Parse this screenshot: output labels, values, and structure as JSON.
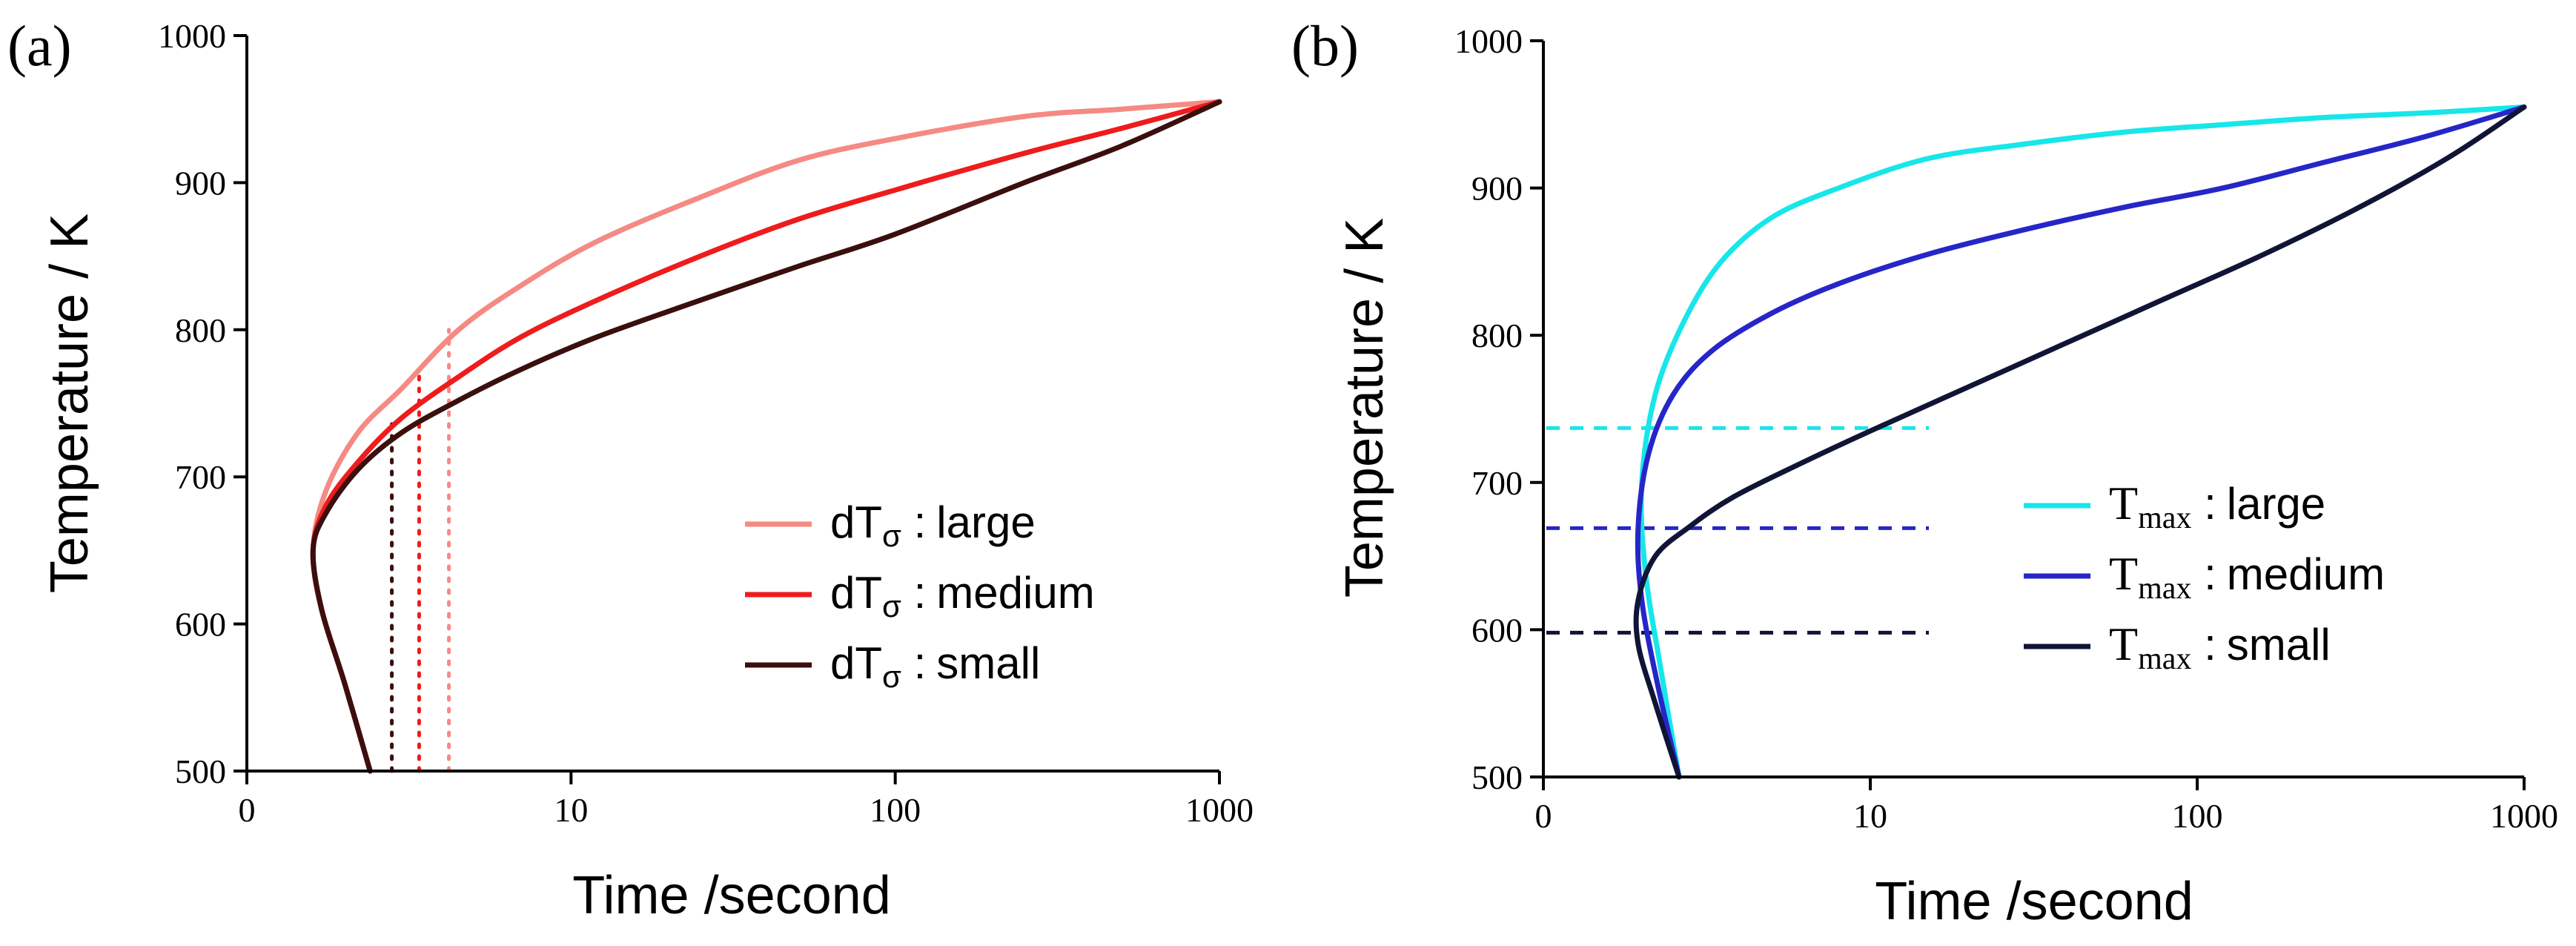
{
  "chart_data": [
    {
      "panel": "(a)",
      "type": "line",
      "xlabel": "Time /second",
      "ylabel": "Temperature / K",
      "x_scale": "log",
      "x_ticks": [
        0,
        10,
        100,
        1000
      ],
      "y_ticks": [
        500,
        600,
        700,
        800,
        900,
        1000
      ],
      "ylim": [
        500,
        1000
      ],
      "legend_position": "bottom-right",
      "legend": [
        {
          "symbol": "dT",
          "sub": "σ",
          "sep": " :",
          "label": "large"
        },
        {
          "symbol": "dT",
          "sub": "σ",
          "sep": " :",
          "label": "medium"
        },
        {
          "symbol": "dT",
          "sub": "σ",
          "sep": " :",
          "label": "small"
        }
      ],
      "colors": [
        "#f58a84",
        "#ee1c1c",
        "#3a0f0e"
      ],
      "series": [
        {
          "name": "dTσ : large",
          "x": [
            2.4,
            2.0,
            1.7,
            1.6,
            1.75,
            2.2,
            3.0,
            4.5,
            7,
            12,
            25,
            50,
            100,
            250,
            500,
            1000
          ],
          "y": [
            500,
            560,
            610,
            650,
            690,
            730,
            760,
            800,
            830,
            860,
            890,
            915,
            930,
            945,
            950,
            955
          ]
        },
        {
          "name": "dTσ : medium",
          "x": [
            2.4,
            2.0,
            1.7,
            1.6,
            1.75,
            2.2,
            3.0,
            4.5,
            7,
            12,
            25,
            50,
            100,
            250,
            500,
            1000
          ],
          "y": [
            500,
            560,
            610,
            650,
            680,
            710,
            740,
            768,
            795,
            820,
            850,
            875,
            895,
            920,
            937,
            955
          ]
        },
        {
          "name": "dTσ : small",
          "x": [
            2.4,
            2.0,
            1.7,
            1.6,
            1.75,
            2.2,
            3.0,
            4.5,
            7,
            12,
            25,
            50,
            100,
            250,
            500,
            1000
          ],
          "y": [
            500,
            560,
            610,
            650,
            675,
            705,
            730,
            752,
            773,
            795,
            820,
            843,
            865,
            900,
            925,
            955
          ]
        }
      ],
      "markers": [
        {
          "x": 2.8,
          "y_top": 738,
          "color": "#3a0f0e"
        },
        {
          "x": 3.4,
          "y_top": 770,
          "color": "#ee1c1c"
        },
        {
          "x": 4.2,
          "y_top": 800,
          "color": "#f58a84"
        }
      ]
    },
    {
      "panel": "(b)",
      "type": "line",
      "xlabel": "Time /second",
      "ylabel": "Temperature / K",
      "x_scale": "log",
      "x_ticks": [
        0,
        10,
        100,
        1000
      ],
      "y_ticks": [
        500,
        600,
        700,
        800,
        900,
        1000
      ],
      "ylim": [
        500,
        1000
      ],
      "legend_position": "bottom-right",
      "legend": [
        {
          "symbol": "T",
          "sub": "max",
          "sep": " :",
          "label": "large"
        },
        {
          "symbol": "T",
          "sub": "max",
          "sep": " :",
          "label": "medium"
        },
        {
          "symbol": "T",
          "sub": "max",
          "sep": " :",
          "label": "small"
        }
      ],
      "colors": [
        "#17e6ea",
        "#2626c8",
        "#101436"
      ],
      "series": [
        {
          "name": "Tmax : large",
          "x": [
            2.6,
            2.3,
            2.05,
            2.0,
            2.2,
            2.7,
            3.5,
            5,
            8,
            15,
            30,
            60,
            120,
            250,
            500,
            1000
          ],
          "y": [
            500,
            570,
            640,
            700,
            760,
            810,
            850,
            880,
            900,
            920,
            930,
            938,
            943,
            948,
            951,
            955
          ]
        },
        {
          "name": "Tmax : medium",
          "x": [
            2.6,
            2.25,
            2.0,
            1.95,
            2.1,
            2.5,
            3.3,
            5,
            8,
            15,
            30,
            60,
            120,
            250,
            500,
            1000
          ],
          "y": [
            500,
            560,
            620,
            670,
            720,
            760,
            790,
            815,
            835,
            855,
            872,
            887,
            900,
            918,
            935,
            955
          ]
        },
        {
          "name": "Tmax : small",
          "x": [
            2.6,
            2.2,
            1.95,
            1.95,
            2.2,
            2.8,
            3.8,
            6,
            10,
            20,
            40,
            80,
            160,
            320,
            600,
            1000
          ],
          "y": [
            500,
            550,
            590,
            620,
            650,
            670,
            690,
            712,
            735,
            765,
            795,
            825,
            855,
            888,
            922,
            955
          ]
        }
      ],
      "hlines": [
        {
          "y": 737,
          "color": "#17e6ea"
        },
        {
          "y": 669,
          "color": "#2626c8"
        },
        {
          "y": 598,
          "color": "#101436"
        }
      ]
    }
  ]
}
